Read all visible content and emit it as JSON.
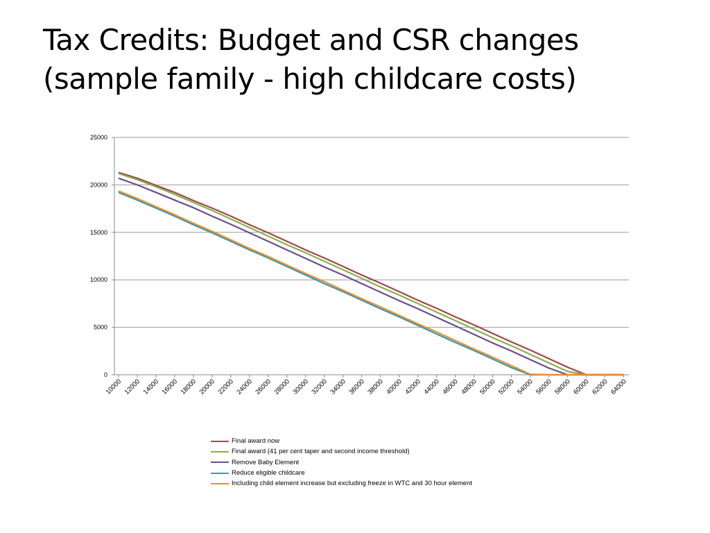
{
  "slide": {
    "title_line1": "Tax Credits: Budget and CSR changes",
    "title_line2": "(sample family - high childcare costs)"
  },
  "chart_data": {
    "type": "line",
    "ylim": [
      0,
      25000
    ],
    "yticks": [
      0,
      5000,
      10000,
      15000,
      20000,
      25000
    ],
    "x": [
      10000,
      12000,
      14000,
      16000,
      18000,
      20000,
      22000,
      24000,
      26000,
      28000,
      30000,
      32000,
      34000,
      36000,
      38000,
      40000,
      42000,
      44000,
      46000,
      48000,
      50000,
      52000,
      54000,
      56000,
      58000,
      60000,
      62000,
      64000
    ],
    "grid": "horizontal",
    "legend_position": "bottom",
    "series": [
      {
        "name": "Final award now",
        "color": "#A0464B",
        "values": [
          21300,
          20700,
          19950,
          19200,
          18350,
          17550,
          16700,
          15800,
          14950,
          14050,
          13150,
          12300,
          11400,
          10500,
          9650,
          8750,
          7850,
          7000,
          6100,
          5250,
          4350,
          3450,
          2600,
          1700,
          800,
          0,
          0,
          0
        ]
      },
      {
        "name": "Final award (41 per cent taper and second income threshold)",
        "color": "#8AB04A",
        "values": [
          21200,
          20550,
          19800,
          19000,
          18150,
          17300,
          16400,
          15500,
          14600,
          13700,
          12850,
          11950,
          11050,
          10150,
          9250,
          8400,
          7500,
          6600,
          5700,
          4800,
          3900,
          3050,
          2150,
          1250,
          350,
          0,
          0,
          0
        ]
      },
      {
        "name": "Remove Baby Element",
        "color": "#6B4C8E",
        "values": [
          20700,
          20000,
          19200,
          18400,
          17600,
          16700,
          15850,
          14950,
          14050,
          13150,
          12250,
          11350,
          10500,
          9600,
          8700,
          7800,
          6950,
          6050,
          5150,
          4250,
          3350,
          2500,
          1600,
          700,
          0,
          0,
          0,
          0
        ]
      },
      {
        "name": "Reduce eligible childcare",
        "color": "#3C98A6",
        "values": [
          19200,
          18400,
          17550,
          16700,
          15800,
          14950,
          14050,
          13150,
          12300,
          11400,
          10500,
          9600,
          8750,
          7850,
          6950,
          6100,
          5200,
          4300,
          3400,
          2550,
          1650,
          750,
          0,
          0,
          0,
          0,
          0,
          0
        ]
      },
      {
        "name": "Including child element increase but excluding freeze in WTC and 30 hour element",
        "color": "#F08A2E",
        "values": [
          19350,
          18550,
          17700,
          16850,
          15950,
          15100,
          14200,
          13300,
          12450,
          11550,
          10650,
          9800,
          8900,
          8000,
          7150,
          6250,
          5350,
          4500,
          3600,
          2700,
          1850,
          950,
          50,
          0,
          0,
          0,
          0,
          0
        ]
      }
    ]
  }
}
